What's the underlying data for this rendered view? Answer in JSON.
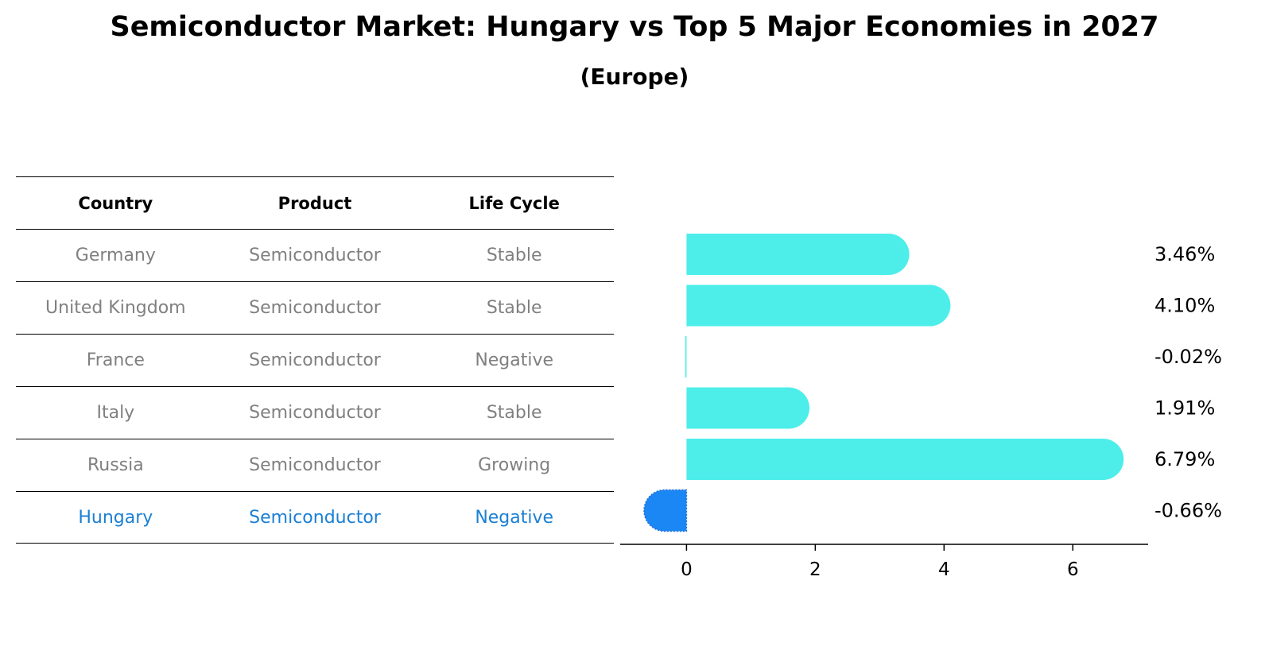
{
  "title": "Semiconductor Market: Hungary vs Top 5 Major Economies in 2027",
  "subtitle": "(Europe)",
  "table": {
    "headers": [
      "Country",
      "Product",
      "Life Cycle"
    ],
    "rows": [
      [
        "Germany",
        "Semiconductor",
        "Stable"
      ],
      [
        "United Kingdom",
        "Semiconductor",
        "Stable"
      ],
      [
        "France",
        "Semiconductor",
        "Negative"
      ],
      [
        "Italy",
        "Semiconductor",
        "Stable"
      ],
      [
        "Russia",
        "Semiconductor",
        "Growing"
      ],
      [
        "Hungary",
        "Semiconductor",
        "Negative"
      ]
    ],
    "highlight_row": 5
  },
  "chart_data": {
    "type": "bar",
    "orientation": "horizontal",
    "categories": [
      "Germany",
      "United Kingdom",
      "France",
      "Italy",
      "Russia",
      "Hungary"
    ],
    "values": [
      3.46,
      4.1,
      -0.02,
      1.91,
      6.79,
      -0.66
    ],
    "labels": [
      "3.46%",
      "4.10%",
      "-0.02%",
      "1.91%",
      "6.79%",
      "-0.66%"
    ],
    "xticks": [
      0,
      2,
      4,
      6
    ],
    "xlim": [
      -1.03,
      7.17
    ],
    "colors": {
      "default": "#4deeea",
      "highlight": "#1a87f5"
    }
  }
}
